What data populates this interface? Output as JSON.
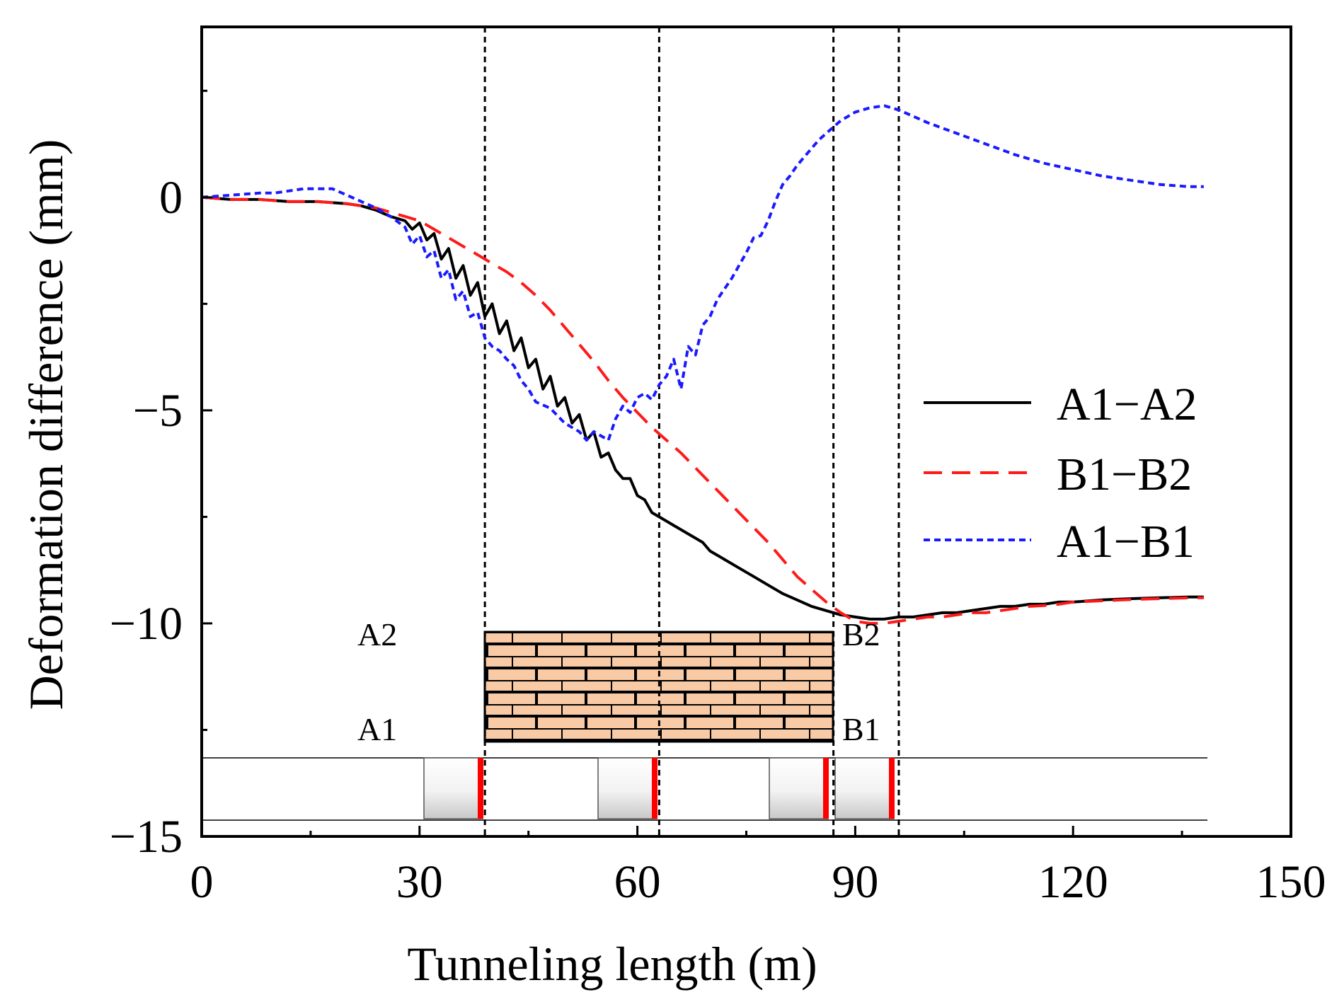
{
  "chart_data": {
    "type": "line",
    "xlabel": "Tunneling length (m)",
    "ylabel": "Deformation difference (mm)",
    "xlim": [
      0,
      150
    ],
    "ylim": [
      -15,
      4
    ],
    "xticks": [
      0,
      30,
      60,
      90,
      120,
      150
    ],
    "yticks": [
      -15,
      -10,
      -5,
      0
    ],
    "xtick_labels": [
      "0",
      "30",
      "60",
      "90",
      "120",
      "150"
    ],
    "ytick_labels": [
      "−15",
      "−10",
      "−5",
      "0"
    ],
    "vlines": [
      39,
      63,
      87,
      96
    ],
    "legend_position": "right",
    "series": [
      {
        "name": "A1−A2",
        "color": "#000000",
        "style": "solid",
        "x": [
          0,
          4,
          8,
          12,
          16,
          20,
          22,
          24,
          26,
          28,
          29,
          30,
          31,
          32,
          33,
          34,
          35,
          36,
          37,
          38,
          39,
          40,
          41,
          42,
          43,
          44,
          45,
          46,
          47,
          48,
          49,
          50,
          51,
          52,
          53,
          54,
          55,
          56,
          57,
          58,
          59,
          60,
          61,
          62,
          63,
          64,
          65,
          66,
          67,
          68,
          69,
          70,
          71,
          72,
          73,
          74,
          75,
          76,
          78,
          80,
          82,
          84,
          86,
          88,
          90,
          92,
          94,
          96,
          98,
          100,
          102,
          104,
          106,
          108,
          110,
          112,
          114,
          116,
          118,
          120,
          124,
          128,
          132,
          136,
          138
        ],
        "y": [
          0,
          -0.05,
          -0.05,
          -0.1,
          -0.1,
          -0.15,
          -0.2,
          -0.3,
          -0.45,
          -0.55,
          -0.75,
          -0.6,
          -1.0,
          -0.85,
          -1.45,
          -1.2,
          -1.9,
          -1.6,
          -2.3,
          -2.0,
          -2.8,
          -2.5,
          -3.2,
          -2.9,
          -3.6,
          -3.3,
          -4.0,
          -3.8,
          -4.5,
          -4.2,
          -4.9,
          -4.7,
          -5.3,
          -5.1,
          -5.7,
          -5.5,
          -6.1,
          -6.0,
          -6.4,
          -6.6,
          -6.6,
          -7.0,
          -7.1,
          -7.4,
          -7.5,
          -7.6,
          -7.7,
          -7.8,
          -7.9,
          -8.0,
          -8.1,
          -8.3,
          -8.4,
          -8.5,
          -8.6,
          -8.7,
          -8.8,
          -8.9,
          -9.1,
          -9.3,
          -9.45,
          -9.6,
          -9.7,
          -9.8,
          -9.85,
          -9.9,
          -9.9,
          -9.85,
          -9.85,
          -9.8,
          -9.75,
          -9.75,
          -9.7,
          -9.65,
          -9.6,
          -9.6,
          -9.55,
          -9.55,
          -9.5,
          -9.5,
          -9.45,
          -9.42,
          -9.4,
          -9.38,
          -9.38
        ]
      },
      {
        "name": "B1−B2",
        "color": "#ff1a1a",
        "style": "dashed",
        "x": [
          0,
          4,
          8,
          12,
          16,
          20,
          24,
          28,
          30,
          32,
          34,
          36,
          38,
          40,
          42,
          44,
          46,
          48,
          50,
          52,
          54,
          56,
          58,
          60,
          62,
          64,
          66,
          68,
          70,
          72,
          74,
          76,
          78,
          80,
          82,
          84,
          86,
          88,
          90,
          92,
          94,
          96,
          98,
          100,
          102,
          104,
          106,
          108,
          110,
          112,
          114,
          116,
          118,
          120,
          124,
          128,
          132,
          136,
          138
        ],
        "y": [
          0,
          -0.05,
          -0.05,
          -0.1,
          -0.1,
          -0.15,
          -0.25,
          -0.45,
          -0.55,
          -0.75,
          -0.95,
          -1.15,
          -1.35,
          -1.55,
          -1.75,
          -2.0,
          -2.3,
          -2.65,
          -3.05,
          -3.45,
          -3.85,
          -4.3,
          -4.7,
          -5.05,
          -5.4,
          -5.7,
          -6.0,
          -6.35,
          -6.7,
          -7.05,
          -7.4,
          -7.75,
          -8.1,
          -8.5,
          -8.9,
          -9.2,
          -9.5,
          -9.75,
          -9.95,
          -10.0,
          -10.0,
          -9.95,
          -9.9,
          -9.85,
          -9.85,
          -9.8,
          -9.75,
          -9.75,
          -9.7,
          -9.65,
          -9.6,
          -9.58,
          -9.55,
          -9.5,
          -9.47,
          -9.44,
          -9.42,
          -9.4,
          -9.4
        ]
      },
      {
        "name": "A1−B1",
        "color": "#1a1aff",
        "style": "dotted",
        "x": [
          0,
          4,
          8,
          10,
          12,
          14,
          16,
          18,
          20,
          22,
          24,
          26,
          28,
          29,
          30,
          31,
          32,
          33,
          34,
          35,
          36,
          37,
          38,
          39,
          40,
          41,
          42,
          43,
          44,
          45,
          46,
          48,
          50,
          52,
          53,
          54,
          55,
          56,
          57,
          58,
          59,
          60,
          61,
          62,
          63,
          64,
          65,
          66,
          67,
          68,
          69,
          70,
          71,
          72,
          73,
          74,
          75,
          76,
          77,
          78,
          79,
          80,
          81,
          82,
          83,
          84,
          85,
          86,
          87,
          88,
          90,
          92,
          94,
          96,
          98,
          100,
          104,
          108,
          112,
          116,
          120,
          124,
          128,
          132,
          136,
          138
        ],
        "y": [
          0,
          0.05,
          0.1,
          0.1,
          0.15,
          0.2,
          0.2,
          0.2,
          0.05,
          -0.1,
          -0.25,
          -0.45,
          -0.7,
          -1.1,
          -0.9,
          -1.4,
          -1.25,
          -1.9,
          -1.7,
          -2.4,
          -2.2,
          -2.8,
          -2.7,
          -3.3,
          -3.5,
          -3.6,
          -3.8,
          -3.95,
          -4.3,
          -4.5,
          -4.8,
          -4.95,
          -5.3,
          -5.5,
          -5.7,
          -5.5,
          -5.6,
          -5.7,
          -5.2,
          -4.9,
          -5.05,
          -4.7,
          -4.6,
          -4.75,
          -4.4,
          -4.2,
          -3.8,
          -4.5,
          -3.5,
          -3.7,
          -3.0,
          -2.8,
          -2.4,
          -2.15,
          -1.9,
          -1.6,
          -1.3,
          -0.95,
          -0.9,
          -0.55,
          -0.1,
          0.3,
          0.5,
          0.75,
          0.95,
          1.15,
          1.35,
          1.5,
          1.65,
          1.8,
          2.0,
          2.1,
          2.15,
          2.05,
          1.9,
          1.75,
          1.5,
          1.25,
          1.0,
          0.8,
          0.65,
          0.5,
          0.4,
          0.3,
          0.25,
          0.25
        ]
      }
    ]
  },
  "inset": {
    "labels": {
      "a2": "A2",
      "b2": "B2",
      "a1": "A1",
      "b1": "B1"
    },
    "brick_fill": "#f8caa6",
    "liner_color": "#ff0000"
  }
}
